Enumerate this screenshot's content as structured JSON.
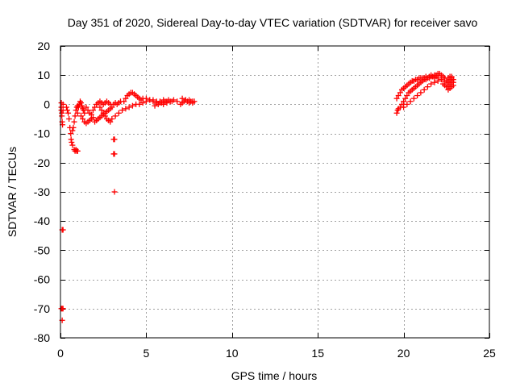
{
  "chart_data": {
    "type": "scatter",
    "title": "Day 351 of 2020, Sidereal Day-to-day VTEC variation (SDTVAR) for receiver savo",
    "xlabel": "GPS time / hours",
    "ylabel": "SDTVAR / TECUs",
    "xlim": [
      0,
      25
    ],
    "ylim": [
      -80,
      20
    ],
    "xticks": [
      0,
      5,
      10,
      15,
      20,
      25
    ],
    "yticks": [
      -80,
      -70,
      -60,
      -50,
      -40,
      -30,
      -20,
      -10,
      0,
      10,
      20
    ],
    "grid": true,
    "marker": "+",
    "marker_color": "#ff0000",
    "series": [
      {
        "name": "SDTVAR",
        "points": [
          [
            0.05,
            0.5
          ],
          [
            0.05,
            -1
          ],
          [
            0.05,
            -2
          ],
          [
            0.08,
            -3
          ],
          [
            0.08,
            -4
          ],
          [
            0.1,
            -6
          ],
          [
            0.12,
            -7
          ],
          [
            0.15,
            -2
          ],
          [
            0.15,
            0
          ],
          [
            0.1,
            -43
          ],
          [
            0.15,
            -43
          ],
          [
            0.05,
            -70
          ],
          [
            0.1,
            -70
          ],
          [
            0.15,
            -70
          ],
          [
            0.1,
            -74
          ],
          [
            0.35,
            -1
          ],
          [
            0.4,
            -2
          ],
          [
            0.45,
            -3
          ],
          [
            0.5,
            -5
          ],
          [
            0.55,
            -8
          ],
          [
            0.6,
            -10
          ],
          [
            0.62,
            -12
          ],
          [
            0.65,
            -13
          ],
          [
            0.7,
            -14
          ],
          [
            0.7,
            -9
          ],
          [
            0.75,
            -8
          ],
          [
            0.8,
            -6
          ],
          [
            0.85,
            -4
          ],
          [
            0.9,
            -2
          ],
          [
            0.95,
            -1
          ],
          [
            1.0,
            -0.5
          ],
          [
            0.8,
            -15.5
          ],
          [
            0.85,
            -16
          ],
          [
            0.9,
            -15.5
          ],
          [
            0.95,
            -16
          ],
          [
            1.0,
            -16
          ],
          [
            1.0,
            -3
          ],
          [
            1.05,
            -1
          ],
          [
            1.1,
            0
          ],
          [
            1.15,
            1
          ],
          [
            1.2,
            0.5
          ],
          [
            1.25,
            -0.5
          ],
          [
            1.3,
            -1.5
          ],
          [
            1.35,
            -2
          ],
          [
            1.4,
            -3
          ],
          [
            1.2,
            -4
          ],
          [
            1.3,
            -5
          ],
          [
            1.4,
            -6
          ],
          [
            1.5,
            -6.5
          ],
          [
            1.6,
            -6
          ],
          [
            1.7,
            -5.5
          ],
          [
            1.8,
            -5
          ],
          [
            1.9,
            -4.5
          ],
          [
            1.5,
            -1
          ],
          [
            1.6,
            -2
          ],
          [
            1.7,
            -3
          ],
          [
            1.8,
            -3.5
          ],
          [
            1.9,
            -2
          ],
          [
            2.0,
            -1
          ],
          [
            2.1,
            0
          ],
          [
            2.2,
            0.5
          ],
          [
            2.3,
            1
          ],
          [
            2.4,
            0.5
          ],
          [
            2.0,
            -6
          ],
          [
            2.1,
            -5.5
          ],
          [
            2.2,
            -5
          ],
          [
            2.3,
            -4.5
          ],
          [
            2.4,
            -4
          ],
          [
            2.5,
            -3.5
          ],
          [
            2.6,
            -3
          ],
          [
            2.7,
            -2.5
          ],
          [
            2.8,
            -2
          ],
          [
            2.9,
            -1.5
          ],
          [
            3.0,
            -1
          ],
          [
            2.3,
            -1
          ],
          [
            2.4,
            -2
          ],
          [
            2.5,
            -3
          ],
          [
            2.6,
            -4
          ],
          [
            2.7,
            -5
          ],
          [
            2.8,
            -5.5
          ],
          [
            2.9,
            -6
          ],
          [
            2.5,
            0
          ],
          [
            2.6,
            0.5
          ],
          [
            2.7,
            1
          ],
          [
            2.8,
            0.5
          ],
          [
            2.9,
            0
          ],
          [
            3.1,
            -12
          ],
          [
            3.15,
            -12
          ],
          [
            3.1,
            -17
          ],
          [
            3.15,
            -17
          ],
          [
            3.15,
            -30
          ],
          [
            3.1,
            0
          ],
          [
            3.2,
            0.5
          ],
          [
            3.3,
            0
          ],
          [
            3.4,
            0.5
          ],
          [
            3.5,
            1
          ],
          [
            3.0,
            -5
          ],
          [
            3.2,
            -4
          ],
          [
            3.4,
            -3
          ],
          [
            3.6,
            -2
          ],
          [
            3.8,
            -1.5
          ],
          [
            4.0,
            -1
          ],
          [
            4.2,
            -0.5
          ],
          [
            4.4,
            0
          ],
          [
            3.7,
            1
          ],
          [
            3.8,
            2
          ],
          [
            3.9,
            3
          ],
          [
            4.0,
            3.5
          ],
          [
            4.1,
            4
          ],
          [
            4.2,
            4
          ],
          [
            4.3,
            3.5
          ],
          [
            4.4,
            3
          ],
          [
            4.5,
            2.5
          ],
          [
            4.6,
            2
          ],
          [
            4.7,
            1.5
          ],
          [
            4.6,
            0
          ],
          [
            4.8,
            0.5
          ],
          [
            5.0,
            1
          ],
          [
            5.2,
            1.5
          ],
          [
            5.4,
            1.5
          ],
          [
            5.6,
            1
          ],
          [
            5.8,
            1
          ],
          [
            6.0,
            1.5
          ],
          [
            6.2,
            1
          ],
          [
            4.8,
            2
          ],
          [
            5.0,
            2
          ],
          [
            5.2,
            1.5
          ],
          [
            5.4,
            1
          ],
          [
            5.6,
            0.5
          ],
          [
            5.8,
            0.5
          ],
          [
            6.0,
            0
          ],
          [
            6.2,
            0.5
          ],
          [
            6.4,
            1
          ],
          [
            6.6,
            1.5
          ],
          [
            6.8,
            1
          ],
          [
            5.5,
            -0.5
          ],
          [
            5.7,
            0
          ],
          [
            5.9,
            0.5
          ],
          [
            6.1,
            1
          ],
          [
            6.3,
            1.5
          ],
          [
            6.5,
            1
          ],
          [
            7.0,
            0
          ],
          [
            7.1,
            0.5
          ],
          [
            7.2,
            1
          ],
          [
            7.3,
            1.5
          ],
          [
            7.4,
            1
          ],
          [
            7.5,
            0.5
          ],
          [
            7.6,
            1
          ],
          [
            7.7,
            0.5
          ],
          [
            7.8,
            1
          ],
          [
            7.1,
            2
          ],
          [
            7.3,
            1.5
          ],
          [
            7.5,
            1.5
          ],
          [
            7.7,
            1
          ],
          [
            19.6,
            -3
          ],
          [
            19.65,
            -2
          ],
          [
            19.7,
            -1.5
          ],
          [
            19.8,
            -1
          ],
          [
            19.9,
            0
          ],
          [
            20.0,
            1
          ],
          [
            20.1,
            2
          ],
          [
            20.2,
            3
          ],
          [
            20.3,
            4
          ],
          [
            20.4,
            4.5
          ],
          [
            20.5,
            5
          ],
          [
            20.6,
            5.5
          ],
          [
            20.7,
            6
          ],
          [
            20.8,
            6.5
          ],
          [
            20.9,
            7
          ],
          [
            21.0,
            7.5
          ],
          [
            21.1,
            8
          ],
          [
            21.2,
            8.5
          ],
          [
            21.3,
            8.5
          ],
          [
            21.4,
            9
          ],
          [
            21.5,
            9
          ],
          [
            21.6,
            9.5
          ],
          [
            21.7,
            9.5
          ],
          [
            21.8,
            10
          ],
          [
            21.9,
            10
          ],
          [
            22.0,
            10.5
          ],
          [
            22.1,
            10.5
          ],
          [
            22.2,
            10
          ],
          [
            22.3,
            9.5
          ],
          [
            22.4,
            9
          ],
          [
            19.6,
            2
          ],
          [
            19.7,
            3
          ],
          [
            19.8,
            4
          ],
          [
            19.9,
            5
          ],
          [
            20.0,
            5.5
          ],
          [
            20.1,
            6
          ],
          [
            20.2,
            6.5
          ],
          [
            20.3,
            7
          ],
          [
            20.4,
            7.5
          ],
          [
            20.5,
            8
          ],
          [
            20.6,
            8
          ],
          [
            20.7,
            8.5
          ],
          [
            20.8,
            8.5
          ],
          [
            20.9,
            9
          ],
          [
            21.0,
            9
          ],
          [
            21.1,
            9
          ],
          [
            21.2,
            9
          ],
          [
            21.3,
            9.5
          ],
          [
            21.4,
            9
          ],
          [
            21.5,
            9.5
          ],
          [
            21.6,
            10
          ],
          [
            21.7,
            9.5
          ],
          [
            21.8,
            9
          ],
          [
            21.9,
            9.5
          ],
          [
            22.0,
            9
          ],
          [
            20.0,
            -1
          ],
          [
            20.2,
            0
          ],
          [
            20.4,
            1
          ],
          [
            20.6,
            2
          ],
          [
            20.8,
            3
          ],
          [
            21.0,
            4
          ],
          [
            21.2,
            5
          ],
          [
            21.4,
            6
          ],
          [
            21.6,
            7
          ],
          [
            21.8,
            7.5
          ],
          [
            22.0,
            8
          ],
          [
            22.2,
            8.5
          ],
          [
            22.4,
            8
          ],
          [
            22.6,
            7.5
          ],
          [
            22.5,
            8
          ],
          [
            22.6,
            9
          ],
          [
            22.7,
            8.5
          ],
          [
            22.8,
            8
          ],
          [
            22.9,
            7.5
          ],
          [
            22.9,
            6.5
          ],
          [
            22.8,
            6
          ],
          [
            22.7,
            5.5
          ],
          [
            22.6,
            5
          ],
          [
            22.7,
            7
          ],
          [
            22.8,
            9
          ],
          [
            22.9,
            8.5
          ],
          [
            22.3,
            7
          ],
          [
            22.4,
            6.5
          ],
          [
            22.5,
            6
          ],
          [
            22.6,
            6.5
          ],
          [
            22.7,
            9.5
          ],
          [
            22.8,
            9.5
          ]
        ]
      }
    ]
  }
}
